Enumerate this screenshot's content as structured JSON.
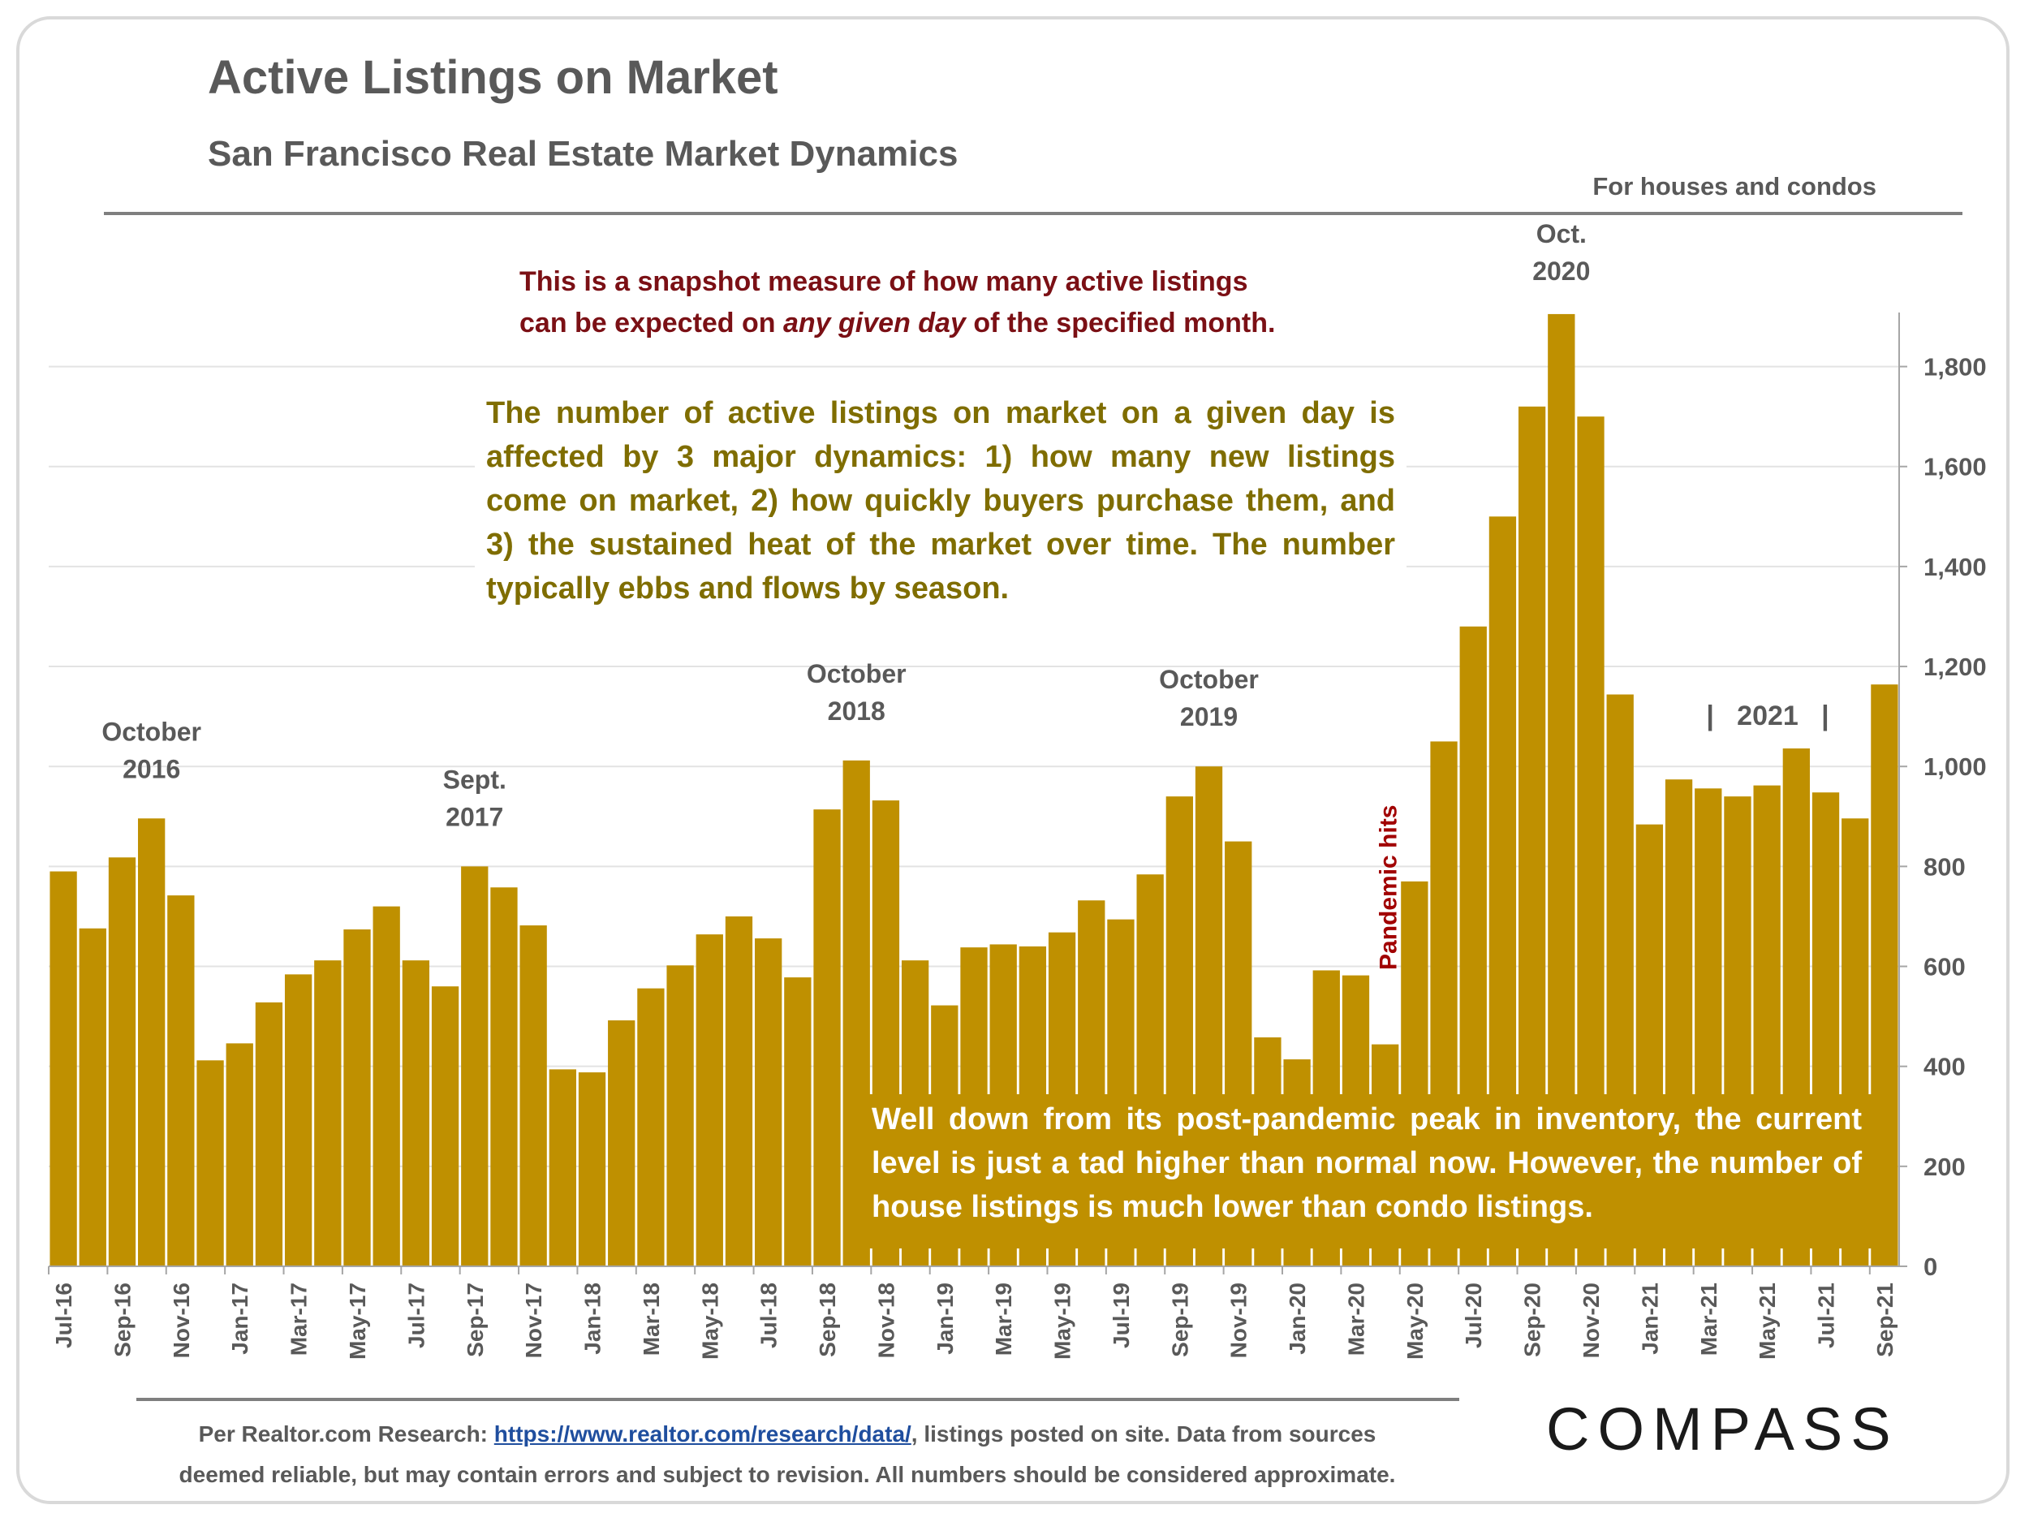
{
  "header": {
    "title": "Active Listings on Market",
    "subtitle": "San Francisco Real Estate Market Dynamics",
    "scope": "For houses and condos"
  },
  "notes": {
    "snapshot_line1": "This is a snapshot measure of how many active listings",
    "snapshot_line2_before": "can be expected on ",
    "snapshot_line2_italic": "any given day",
    "snapshot_line2_after": " of the specified month.",
    "dynamics": "The number of active listings on market on a given day is affected by 3 major dynamics: 1) how many new listings come on market, 2) how quickly buyers purchase them, and 3) the sustained heat of the market over time. The number typically ebbs and flows by season.",
    "current": "Well down from its post-pandemic peak in inventory, the current level is just a tad higher than normal now.  However, the number of house listings is much lower than condo listings."
  },
  "footer": {
    "prefix": "Per Realtor.com Research:  ",
    "link": "https://www.realtor.com/research/data/",
    "suffix": ", listings posted on site. Data from sources",
    "line2": "deemed reliable, but may contain errors and subject to revision. All numbers should be considered approximate."
  },
  "brand": {
    "logo": "COMPASS"
  },
  "colors": {
    "bar": "#bf9000",
    "grid": "#e3e3e3",
    "axis_text": "#595959",
    "accent_red": "#a10000"
  },
  "chart_data": {
    "type": "bar",
    "title": "Active Listings on Market",
    "ylim": [
      0,
      1900
    ],
    "yticks": [
      0,
      200,
      400,
      600,
      800,
      1000,
      1200,
      1400,
      1600,
      1800
    ],
    "y_axis_side": "right",
    "categories": [
      "Jul-16",
      "Aug-16",
      "Sep-16",
      "Oct-16",
      "Nov-16",
      "Dec-16",
      "Jan-17",
      "Feb-17",
      "Mar-17",
      "Apr-17",
      "May-17",
      "Jun-17",
      "Jul-17",
      "Aug-17",
      "Sep-17",
      "Oct-17",
      "Nov-17",
      "Dec-17",
      "Jan-18",
      "Feb-18",
      "Mar-18",
      "Apr-18",
      "May-18",
      "Jun-18",
      "Jul-18",
      "Aug-18",
      "Sep-18",
      "Oct-18",
      "Nov-18",
      "Dec-18",
      "Jan-19",
      "Feb-19",
      "Mar-19",
      "Apr-19",
      "May-19",
      "Jun-19",
      "Jul-19",
      "Aug-19",
      "Sep-19",
      "Oct-19",
      "Nov-19",
      "Dec-19",
      "Jan-20",
      "Feb-20",
      "Mar-20",
      "Apr-20",
      "May-20",
      "Jun-20",
      "Jul-20",
      "Aug-20",
      "Sep-20",
      "Oct-20",
      "Nov-20",
      "Dec-20",
      "Jan-21",
      "Feb-21",
      "Mar-21",
      "Apr-21",
      "May-21",
      "Jun-21",
      "Jul-21",
      "Aug-21",
      "Sep-21"
    ],
    "tick_labels": [
      "Jul-16",
      "Sep-16",
      "Nov-16",
      "Jan-17",
      "Mar-17",
      "May-17",
      "Jul-17",
      "Sep-17",
      "Nov-17",
      "Jan-18",
      "Mar-18",
      "May-18",
      "Jul-18",
      "Sep-18",
      "Nov-18",
      "Jan-19",
      "Mar-19",
      "May-19",
      "Jul-19",
      "Sep-19",
      "Nov-19",
      "Jan-20",
      "Mar-20",
      "May-20",
      "Jul-20",
      "Sep-20",
      "Nov-20",
      "Jan-21",
      "Mar-21",
      "May-21",
      "Jul-21",
      "Sep-21"
    ],
    "values": [
      790,
      676,
      818,
      896,
      742,
      412,
      446,
      528,
      584,
      612,
      674,
      720,
      612,
      560,
      800,
      758,
      682,
      394,
      388,
      492,
      556,
      602,
      664,
      700,
      656,
      578,
      914,
      1012,
      932,
      612,
      522,
      638,
      644,
      640,
      668,
      732,
      694,
      784,
      940,
      1000,
      850,
      458,
      414,
      592,
      582,
      444,
      770,
      1050,
      1280,
      1500,
      1720,
      1905,
      1700,
      1144,
      884,
      974,
      956,
      940,
      962,
      1036,
      948,
      896,
      1164
    ],
    "annotations": [
      {
        "text_line1": "October",
        "text_line2": "2016",
        "category": "Oct-16"
      },
      {
        "text_line1": "Sept.",
        "text_line2": "2017",
        "category": "Sep-17"
      },
      {
        "text_line1": "October",
        "text_line2": "2018",
        "category": "Oct-18"
      },
      {
        "text_line1": "October",
        "text_line2": "2019",
        "category": "Oct-19"
      },
      {
        "text_line1": "Oct.",
        "text_line2": "2020",
        "category": "Oct-20"
      }
    ],
    "pandemic_label": "Pandemic hits",
    "year_marker": "|   2021   |"
  }
}
